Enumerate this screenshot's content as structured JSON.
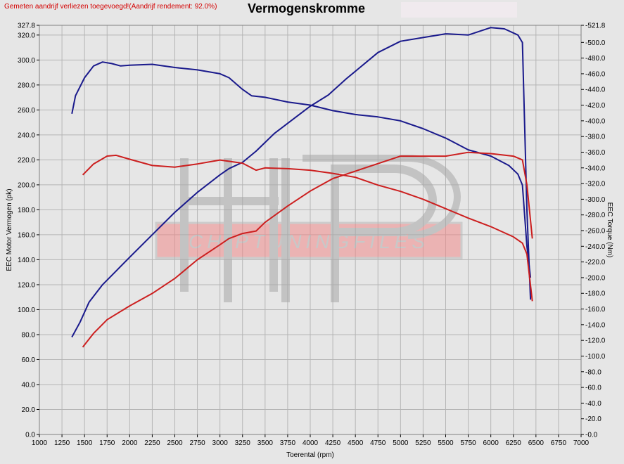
{
  "header": {
    "note": "Gemeten aandrijf verliezen toegevoegd!(Aandrijf rendement: 92.0%)",
    "title": "Vermogenskromme"
  },
  "watermark": {
    "text": "CHIPTUNINGFILES"
  },
  "colors": {
    "blue": "#1a1a8c",
    "red": "#cc1f1f",
    "note": "#d40000",
    "grid": "#b5b5b5",
    "background": "#e6e6e6"
  },
  "chart_data": {
    "type": "line",
    "title": "Vermogenskromme",
    "xlabel": "Toerental (rpm)",
    "ylabel": "EEC Motor Vermogen (pk)",
    "y2label": "EEC Torque (Nm)",
    "xlim": [
      1000,
      7000
    ],
    "ylim": [
      0,
      327.8
    ],
    "y2lim": [
      0,
      521.8
    ],
    "xticks": [
      "1000",
      "1250",
      "1500",
      "1750",
      "2000",
      "2250",
      "2500",
      "2750",
      "3000",
      "3250",
      "3500",
      "3750",
      "4000",
      "4250",
      "4500",
      "4750",
      "5000",
      "5250",
      "5500",
      "5750",
      "6000",
      "6250",
      "6500",
      "6750",
      "7000"
    ],
    "yticks": [
      "0.0",
      "20.0",
      "40.0",
      "60.0",
      "80.0",
      "100.0",
      "120.0",
      "140.0",
      "160.0",
      "180.0",
      "200.0",
      "220.0",
      "240.0",
      "260.0",
      "280.0",
      "300.0",
      "320.0",
      "327.8"
    ],
    "y2ticks": [
      "0.0",
      "20.0",
      "40.0",
      "60.0",
      "80.0",
      "100.0",
      "120.0",
      "140.0",
      "160.0",
      "180.0",
      "200.0",
      "220.0",
      "240.0",
      "260.0",
      "280.0",
      "300.0",
      "320.0",
      "340.0",
      "360.0",
      "380.0",
      "400.0",
      "420.0",
      "440.0",
      "460.0",
      "480.0",
      "500.0",
      "521.8"
    ],
    "grid": true,
    "series": [
      {
        "axis": "power",
        "color": "blue",
        "points": [
          [
            1360,
            78
          ],
          [
            1450,
            90
          ],
          [
            1550,
            106
          ],
          [
            1700,
            120
          ],
          [
            1850,
            131
          ],
          [
            2000,
            142
          ],
          [
            2250,
            160
          ],
          [
            2500,
            178
          ],
          [
            2750,
            194
          ],
          [
            3000,
            208
          ],
          [
            3100,
            213
          ],
          [
            3250,
            218
          ],
          [
            3400,
            227
          ],
          [
            3600,
            241
          ],
          [
            3800,
            252
          ],
          [
            4000,
            263
          ],
          [
            4200,
            272
          ],
          [
            4400,
            285
          ],
          [
            4600,
            297
          ],
          [
            4750,
            306
          ],
          [
            5000,
            315
          ],
          [
            5250,
            318
          ],
          [
            5500,
            321
          ],
          [
            5750,
            320
          ],
          [
            6000,
            326
          ],
          [
            6150,
            325
          ],
          [
            6300,
            320
          ],
          [
            6350,
            314
          ],
          [
            6400,
            180
          ],
          [
            6440,
            108
          ]
        ]
      },
      {
        "axis": "torque",
        "color": "blue",
        "points": [
          [
            1360,
            409
          ],
          [
            1400,
            432
          ],
          [
            1500,
            455
          ],
          [
            1600,
            470
          ],
          [
            1700,
            475
          ],
          [
            1800,
            473
          ],
          [
            1900,
            470
          ],
          [
            2000,
            471
          ],
          [
            2250,
            472
          ],
          [
            2500,
            468
          ],
          [
            2750,
            465
          ],
          [
            3000,
            460
          ],
          [
            3100,
            455
          ],
          [
            3250,
            440
          ],
          [
            3350,
            432
          ],
          [
            3500,
            430
          ],
          [
            3750,
            424
          ],
          [
            4000,
            420
          ],
          [
            4250,
            413
          ],
          [
            4500,
            408
          ],
          [
            4750,
            405
          ],
          [
            5000,
            400
          ],
          [
            5250,
            390
          ],
          [
            5500,
            378
          ],
          [
            5750,
            363
          ],
          [
            6000,
            355
          ],
          [
            6200,
            343
          ],
          [
            6300,
            332
          ],
          [
            6350,
            318
          ],
          [
            6400,
            240
          ],
          [
            6440,
            200
          ]
        ]
      },
      {
        "axis": "power",
        "color": "red",
        "points": [
          [
            1480,
            70
          ],
          [
            1600,
            81
          ],
          [
            1750,
            92
          ],
          [
            2000,
            103
          ],
          [
            2250,
            113
          ],
          [
            2500,
            125
          ],
          [
            2750,
            140
          ],
          [
            3000,
            152
          ],
          [
            3100,
            157
          ],
          [
            3250,
            161
          ],
          [
            3400,
            163
          ],
          [
            3500,
            170
          ],
          [
            3750,
            183
          ],
          [
            4000,
            195
          ],
          [
            4250,
            205
          ],
          [
            4500,
            211
          ],
          [
            4750,
            217
          ],
          [
            5000,
            223
          ],
          [
            5250,
            223
          ],
          [
            5500,
            223
          ],
          [
            5750,
            226
          ],
          [
            6000,
            225
          ],
          [
            6250,
            223
          ],
          [
            6350,
            220
          ],
          [
            6400,
            200
          ],
          [
            6460,
            157
          ]
        ]
      },
      {
        "axis": "torque",
        "color": "red",
        "points": [
          [
            1480,
            331
          ],
          [
            1600,
            345
          ],
          [
            1750,
            355
          ],
          [
            1850,
            356
          ],
          [
            2000,
            351
          ],
          [
            2250,
            343
          ],
          [
            2500,
            341
          ],
          [
            2750,
            345
          ],
          [
            3000,
            350
          ],
          [
            3250,
            346
          ],
          [
            3400,
            337
          ],
          [
            3500,
            340
          ],
          [
            3750,
            339
          ],
          [
            4000,
            337
          ],
          [
            4250,
            333
          ],
          [
            4500,
            328
          ],
          [
            4750,
            318
          ],
          [
            5000,
            310
          ],
          [
            5250,
            300
          ],
          [
            5500,
            288
          ],
          [
            5750,
            276
          ],
          [
            6000,
            265
          ],
          [
            6250,
            252
          ],
          [
            6350,
            244
          ],
          [
            6400,
            230
          ],
          [
            6460,
            170
          ]
        ]
      }
    ]
  }
}
